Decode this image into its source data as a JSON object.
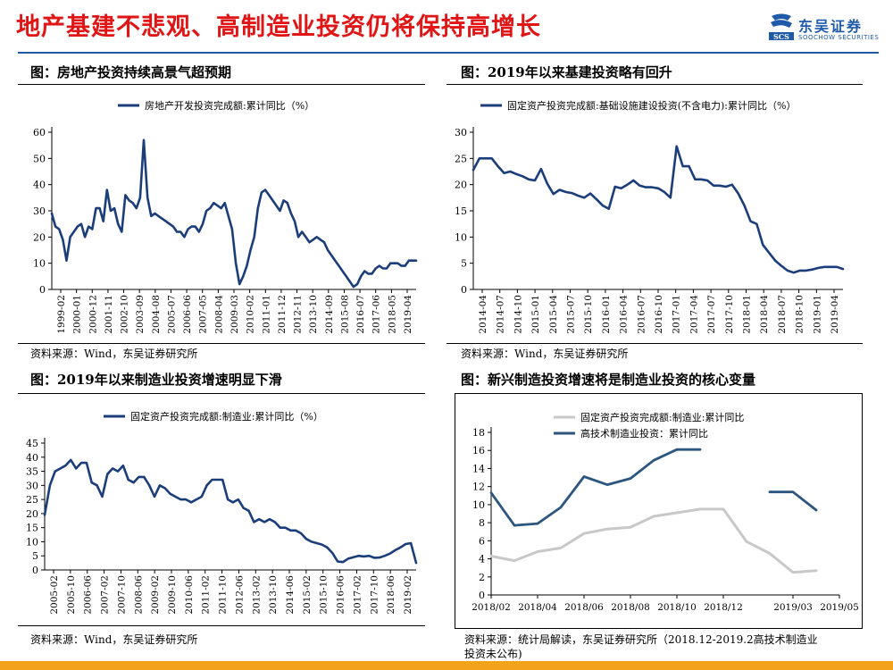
{
  "header": {
    "title": "地产基建不悲观、高制造业投资仍将保持高增长",
    "logo_cn": "东吴证券",
    "logo_en": "SOOCHOW SECURITIES",
    "logo_mark": "SCS"
  },
  "panels": {
    "p1": {
      "title": "图：房地产投资持续高景气超预期",
      "source": "资料来源：Wind，东吴证券研究所"
    },
    "p2": {
      "title": "图：2019年以来基建投资略有回升",
      "source": "资料来源：Wind，东吴证券研究所"
    },
    "p3": {
      "title": "图：2019年以来制造业投资增速明显下滑",
      "source": "资料来源：Wind，东吴证券研究所"
    },
    "p4": {
      "title": "图：新兴制造投资增速将是制造业投资的核心变量",
      "source_line1": "资料来源：统计局解读，东吴证券研究所（2018.12-2019.2高技术制造业",
      "source_line2": "投资未公布)"
    }
  },
  "colors": {
    "navy": "#1b3e7a",
    "gray": "#c8c8c8",
    "steel": "#2b5680",
    "title_red": "#e01515",
    "brand_blue": "#1e5aa8",
    "bar_orange": "#f3a21c"
  },
  "chart_data": [
    {
      "type": "line",
      "series": [
        {
          "name": "房地产开发投资完成额:累计同比（%）",
          "values": [
            29,
            24,
            23,
            19,
            11,
            20,
            22,
            24,
            25,
            20,
            24,
            23,
            31,
            31,
            26,
            38,
            30,
            31,
            25,
            22,
            36,
            34,
            33,
            31,
            35,
            57,
            35,
            28,
            29,
            28,
            27,
            26,
            25,
            24,
            22,
            22,
            20,
            23,
            24,
            24,
            22,
            25,
            30,
            31,
            33,
            32,
            31,
            33,
            28,
            23,
            10,
            2,
            5,
            9,
            15,
            20,
            31,
            37,
            38,
            36,
            34,
            32,
            30,
            34,
            33,
            29,
            26,
            20,
            22,
            20,
            18,
            19,
            20,
            19,
            18,
            15,
            13,
            11,
            9,
            7,
            5,
            3,
            1,
            2,
            5,
            7,
            6,
            6,
            8,
            9,
            8,
            8,
            10,
            10,
            10,
            9,
            9,
            11,
            11,
            11
          ]
        }
      ],
      "x_tick_labels": [
        "1999-02",
        "2000-01",
        "2000-12",
        "2001-11",
        "2002-10",
        "2003-09",
        "2004-08",
        "2005-07",
        "2006-06",
        "2007-05",
        "2008-04",
        "2009-03",
        "2010-02",
        "2011-01",
        "2011-12",
        "2012-11",
        "2013-10",
        "2014-09",
        "2015-08",
        "2016-07",
        "2017-06",
        "2018-05",
        "2019-04"
      ],
      "ylim": [
        0,
        60
      ],
      "y_ticks": [
        0,
        10,
        20,
        30,
        40,
        50,
        60
      ],
      "legend": "top-center"
    },
    {
      "type": "line",
      "series": [
        {
          "name": "固定资产投资完成额:基础设施建设投资(不含电力):累计同比（%）",
          "values": [
            22.8,
            25,
            25,
            25,
            23.5,
            22.2,
            22.5,
            22,
            21.6,
            21,
            20.8,
            23,
            20.2,
            18.2,
            19,
            18.6,
            18.4,
            17.9,
            17.5,
            18.3,
            17.2,
            16,
            15.4,
            19.6,
            19.3,
            20,
            20.8,
            19.8,
            19.5,
            19.5,
            19.3,
            18.6,
            17.5,
            27.3,
            23.5,
            23.5,
            21,
            21,
            20.8,
            19.8,
            19.8,
            19.6,
            20,
            18.3,
            16,
            13,
            12.5,
            8.5,
            7,
            5.5,
            4.5,
            3.6,
            3.2,
            3.6,
            3.6,
            3.8,
            4.1,
            4.3,
            4.3,
            4.3,
            3.9
          ]
        }
      ],
      "x_tick_labels": [
        "2014-04",
        "2014-07",
        "2014-10",
        "2015-01",
        "2015-04",
        "2015-07",
        "2015-10",
        "2016-01",
        "2016-04",
        "2016-07",
        "2016-10",
        "2017-01",
        "2017-04",
        "2017-07",
        "2017-10",
        "2018-01",
        "2018-04",
        "2018-07",
        "2018-10",
        "2019-01",
        "2019-04"
      ],
      "ylim": [
        0,
        30
      ],
      "y_ticks": [
        0,
        5,
        10,
        15,
        20,
        25,
        30
      ],
      "legend": "top-center"
    },
    {
      "type": "line",
      "series": [
        {
          "name": "固定资产投资完成额:制造业:累计同比（%）",
          "values": [
            19.5,
            30,
            35,
            36,
            37,
            39,
            36,
            38,
            38,
            31,
            30,
            26,
            34,
            36,
            35,
            37,
            32,
            31,
            33,
            33,
            30,
            26,
            30,
            29,
            27,
            26,
            25,
            25,
            24,
            25,
            26,
            30,
            32,
            32,
            32,
            25,
            24,
            25,
            22,
            21,
            17,
            18,
            17,
            18,
            17,
            15,
            15,
            14,
            14,
            13,
            11,
            10,
            9.5,
            9,
            8,
            6,
            3,
            2.8,
            4,
            4.5,
            5,
            4.8,
            5,
            4.3,
            4.4,
            5,
            5.8,
            7,
            8,
            9.2,
            9.5,
            2.5
          ]
        }
      ],
      "x_tick_labels": [
        "2005-02",
        "2005-10",
        "2006-06",
        "2007-02",
        "2007-10",
        "2008-06",
        "2009-02",
        "2009-10",
        "2010-06",
        "2011-02",
        "2011-10",
        "2012-06",
        "2013-02",
        "2013-10",
        "2014-06",
        "2015-02",
        "2015-10",
        "2016-06",
        "2017-02",
        "2017-10",
        "2018-06",
        "2019-02"
      ],
      "ylim": [
        0,
        45
      ],
      "y_ticks": [
        0,
        5,
        10,
        15,
        20,
        25,
        30,
        35,
        40,
        45
      ],
      "legend": "top-center"
    },
    {
      "type": "line",
      "categories": [
        "2018/02",
        "2018/03",
        "2018/04",
        "2018/05",
        "2018/06",
        "2018/07",
        "2018/08",
        "2018/09",
        "2018/10",
        "2018/11",
        "2018/12",
        "2019/01",
        "2019/02",
        "2019/03",
        "2019/04",
        "2019/05"
      ],
      "x_tick_labels": [
        "2018/02",
        "2018/04",
        "2018/06",
        "2018/08",
        "2018/10",
        "2018/12",
        "2019/03",
        "2019/05"
      ],
      "series": [
        {
          "name": "固定资产投资完成额:制造业:累计同比",
          "values": [
            4.3,
            3.8,
            4.8,
            5.2,
            6.8,
            7.3,
            7.5,
            8.7,
            9.1,
            9.5,
            9.5,
            5.9,
            4.6,
            2.5,
            2.7,
            null
          ]
        },
        {
          "name": "高技术制造业投资：累计同比",
          "values": [
            11.3,
            7.7,
            7.9,
            9.7,
            13.1,
            12.2,
            12.9,
            14.9,
            16.1,
            16.1,
            null,
            null,
            11.4,
            11.4,
            9.4,
            null
          ]
        }
      ],
      "ylim": [
        0,
        18
      ],
      "y_ticks": [
        0,
        2,
        4,
        6,
        8,
        10,
        12,
        14,
        16,
        18
      ],
      "legend": "top-left"
    }
  ]
}
